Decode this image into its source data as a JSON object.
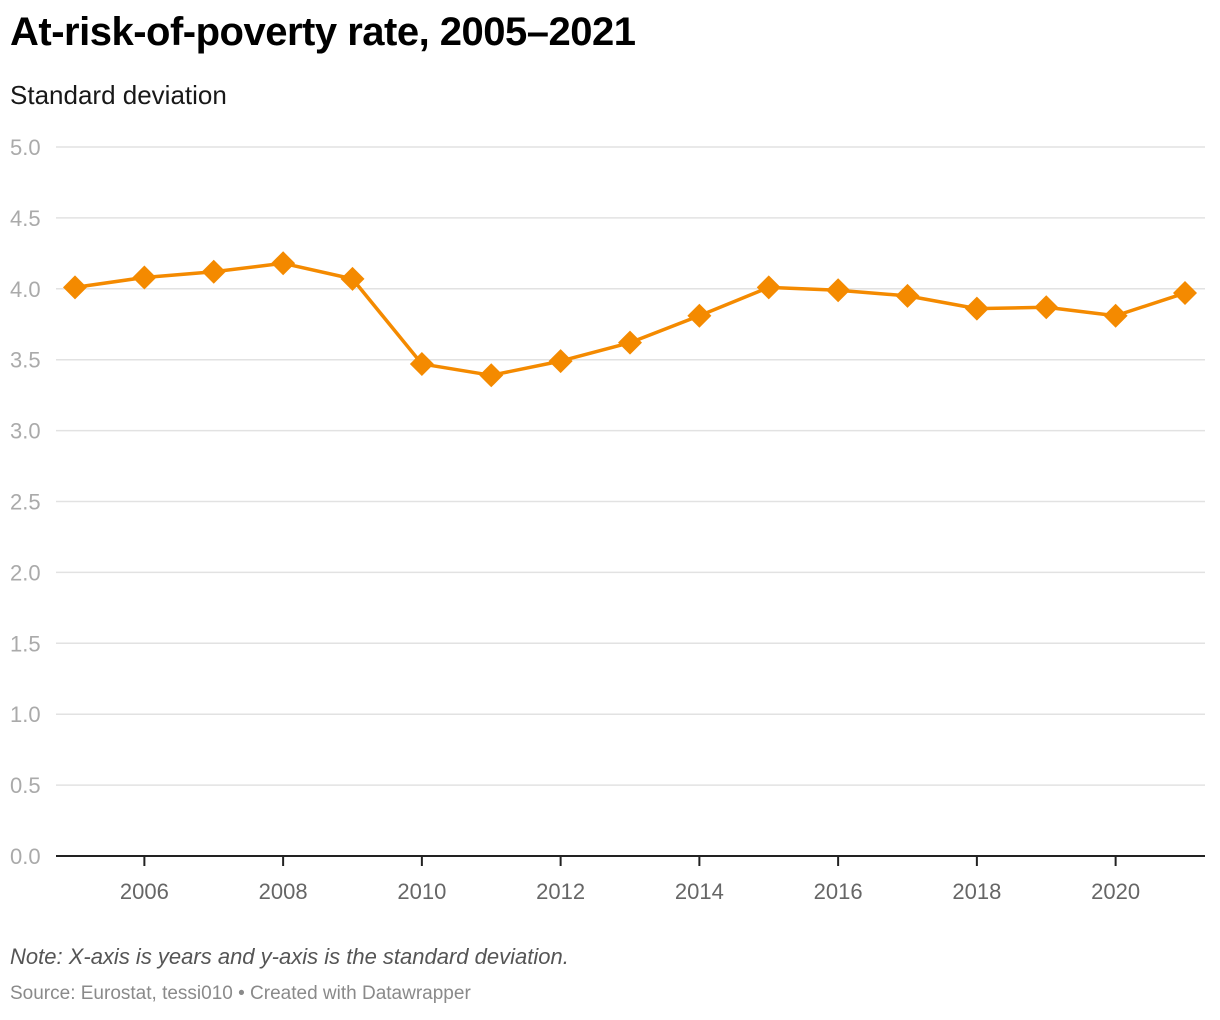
{
  "title": "At-risk-of-poverty rate, 2005–2021",
  "subtitle": "Standard deviation",
  "note": "Note: X-axis is years and y-axis is the standard deviation.",
  "source": "Source: Eurostat, tessi010 • Created with Datawrapper",
  "colors": {
    "line": "#f48a00",
    "grid": "#e2e2e2",
    "axis": "#222222",
    "tick_label": "#aaaaaa",
    "x_label": "#666666"
  },
  "chart_data": {
    "type": "line",
    "title": "At-risk-of-poverty rate, 2005–2021",
    "subtitle": "Standard deviation",
    "xlabel": "",
    "ylabel": "",
    "x": [
      2005,
      2006,
      2007,
      2008,
      2009,
      2010,
      2011,
      2012,
      2013,
      2014,
      2015,
      2016,
      2017,
      2018,
      2019,
      2020,
      2021
    ],
    "series": [
      {
        "values": [
          4.01,
          4.08,
          4.12,
          4.18,
          4.07,
          3.47,
          3.39,
          3.49,
          3.62,
          3.81,
          4.01,
          3.99,
          3.95,
          3.86,
          3.87,
          3.81,
          3.97
        ]
      }
    ],
    "marker": "diamond",
    "ylim": [
      0,
      5
    ],
    "xlim": [
      2005,
      2021
    ],
    "yticks": [
      "0.0",
      "0.5",
      "1.0",
      "1.5",
      "2.0",
      "2.5",
      "3.0",
      "3.5",
      "4.0",
      "4.5",
      "5.0"
    ],
    "xticks": [
      "2006",
      "2008",
      "2010",
      "2012",
      "2014",
      "2016",
      "2018",
      "2020"
    ],
    "grid": true,
    "legend": "none"
  }
}
